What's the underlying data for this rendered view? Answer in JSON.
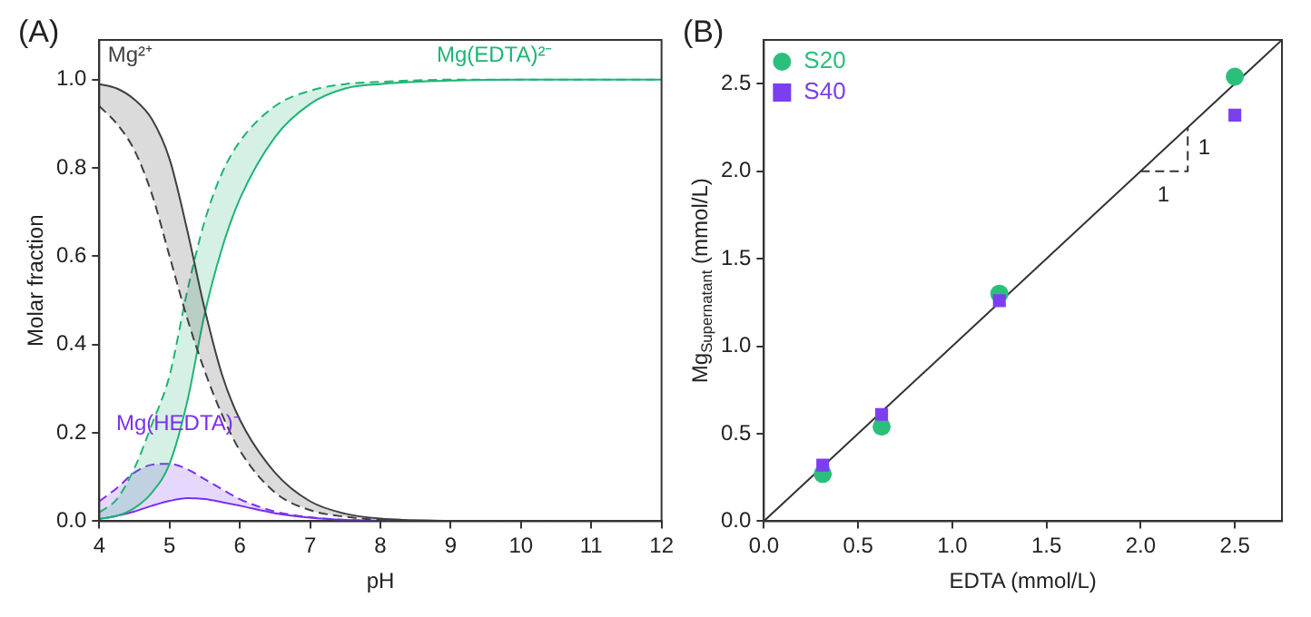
{
  "chart_data": [
    {
      "type": "line",
      "title": "(A)",
      "xlabel": "pH",
      "ylabel": "Molar fraction",
      "x": [
        4,
        4.25,
        4.5,
        4.75,
        5,
        5.25,
        5.5,
        5.75,
        6,
        6.5,
        7,
        7.5,
        8,
        9,
        10,
        12
      ],
      "series": [
        {
          "name": "Mg²⁺",
          "color": "#404040",
          "line_style": "solid",
          "values": [
            0.99,
            0.98,
            0.955,
            0.91,
            0.82,
            0.66,
            0.48,
            0.33,
            0.23,
            0.11,
            0.045,
            0.017,
            0.006,
            0.001,
            0,
            0
          ],
          "lower": [
            0.94,
            0.9,
            0.84,
            0.74,
            0.6,
            0.46,
            0.34,
            0.24,
            0.16,
            0.065,
            0.025,
            0.01,
            0.003,
            0,
            0,
            0
          ],
          "upper": [
            0.99,
            0.98,
            0.955,
            0.91,
            0.82,
            0.66,
            0.48,
            0.33,
            0.23,
            0.11,
            0.045,
            0.017,
            0.006,
            0.001,
            0,
            0
          ]
        },
        {
          "color": "#404040",
          "line_style": "dashed",
          "values": [
            0.94,
            0.9,
            0.84,
            0.74,
            0.6,
            0.46,
            0.34,
            0.24,
            0.16,
            0.065,
            0.025,
            0.01,
            0.003,
            0,
            0,
            0
          ]
        },
        {
          "name": "Mg(EDTA)²⁻",
          "color": "#1fb574",
          "line_style": "solid",
          "values": [
            0.005,
            0.012,
            0.03,
            0.065,
            0.13,
            0.27,
            0.47,
            0.62,
            0.73,
            0.87,
            0.945,
            0.98,
            0.99,
            0.998,
            1,
            1
          ],
          "lower": [
            0.005,
            0.012,
            0.03,
            0.065,
            0.13,
            0.27,
            0.47,
            0.62,
            0.73,
            0.87,
            0.945,
            0.98,
            0.99,
            0.998,
            1,
            1
          ],
          "upper": [
            0.02,
            0.05,
            0.12,
            0.22,
            0.33,
            0.52,
            0.68,
            0.79,
            0.86,
            0.94,
            0.975,
            0.99,
            0.995,
            1,
            1,
            1
          ]
        },
        {
          "color": "#1fb574",
          "line_style": "dashed",
          "values": [
            0.02,
            0.05,
            0.12,
            0.22,
            0.33,
            0.52,
            0.68,
            0.79,
            0.86,
            0.94,
            0.975,
            0.99,
            0.995,
            1,
            1,
            1
          ]
        },
        {
          "name": "Mg(HEDTA)⁻",
          "color": "#7b2ff0",
          "line_style": "solid",
          "values": [
            0.005,
            0.012,
            0.022,
            0.035,
            0.046,
            0.052,
            0.05,
            0.043,
            0.035,
            0.018,
            0.008,
            0.003,
            0.001,
            0,
            null,
            null
          ],
          "lower": [
            0.005,
            0.012,
            0.022,
            0.035,
            0.046,
            0.052,
            0.05,
            0.043,
            0.035,
            0.018,
            0.008,
            0.003,
            0.001,
            0,
            null,
            null
          ],
          "upper": [
            0.045,
            0.075,
            0.11,
            0.128,
            0.13,
            0.118,
            0.095,
            0.072,
            0.05,
            0.022,
            0.009,
            0.003,
            0.001,
            0,
            null,
            null
          ]
        },
        {
          "color": "#7b2ff0",
          "line_style": "dashed",
          "values": [
            0.045,
            0.075,
            0.11,
            0.128,
            0.13,
            0.118,
            0.095,
            0.072,
            0.05,
            0.022,
            0.009,
            0.003,
            0.001,
            0,
            null,
            null
          ]
        }
      ],
      "xlim": [
        4,
        12
      ],
      "xticks": [
        4,
        5,
        6,
        7,
        8,
        9,
        10,
        11,
        12
      ],
      "ylim": [
        0,
        1.09
      ],
      "yticks": [
        {
          "value": 0,
          "label": "0.0"
        },
        0.2,
        0.4,
        0.6,
        0.8,
        {
          "value": 1,
          "label": "1.0"
        }
      ],
      "grid": false,
      "legend": false,
      "marker": "none"
    },
    {
      "type": "scatter",
      "title": "(B)",
      "xlabel": "EDTA (mmol/L)",
      "ylabel": "Mg$_{Supernatant}$ (mmol/L)",
      "series": [
        {
          "name": "S20",
          "color": "#2bbf7b",
          "marker": "circle",
          "x": [
            0.3125,
            0.625,
            1.25,
            2.5
          ],
          "values": [
            0.27,
            0.54,
            1.3,
            2.54
          ]
        },
        {
          "name": "S40",
          "color": "#7b3ff0",
          "marker": "square",
          "x": [
            0.3125,
            0.625,
            1.25,
            2.5
          ],
          "values": [
            0.32,
            0.61,
            1.26,
            2.32
          ]
        },
        {
          "type": "line",
          "color": "#333333",
          "marker": "none",
          "line_style": "solid",
          "x": [
            0,
            2.75
          ],
          "values": [
            0,
            2.75
          ]
        },
        {
          "type": "line",
          "color": "#333333",
          "marker": "none",
          "line_style": "dashed",
          "x": [
            2,
            2.25,
            2.25
          ],
          "values": [
            2,
            2,
            2.25
          ]
        }
      ],
      "annotations": [
        "1",
        "1"
      ],
      "xlim": [
        0,
        2.75
      ],
      "xticks": [
        {
          "value": 0,
          "label": "0.0"
        },
        0.5,
        {
          "value": 1,
          "label": "1.0"
        },
        1.5,
        {
          "value": 2,
          "label": "2.0"
        },
        2.5
      ],
      "ylim": [
        0,
        2.75
      ],
      "yticks": [
        {
          "value": 0,
          "label": "0.0"
        },
        0.5,
        {
          "value": 1,
          "label": "1.0"
        },
        1.5,
        {
          "value": 2,
          "label": "2.0"
        },
        2.5
      ],
      "grid": false,
      "legend": "top left"
    }
  ]
}
